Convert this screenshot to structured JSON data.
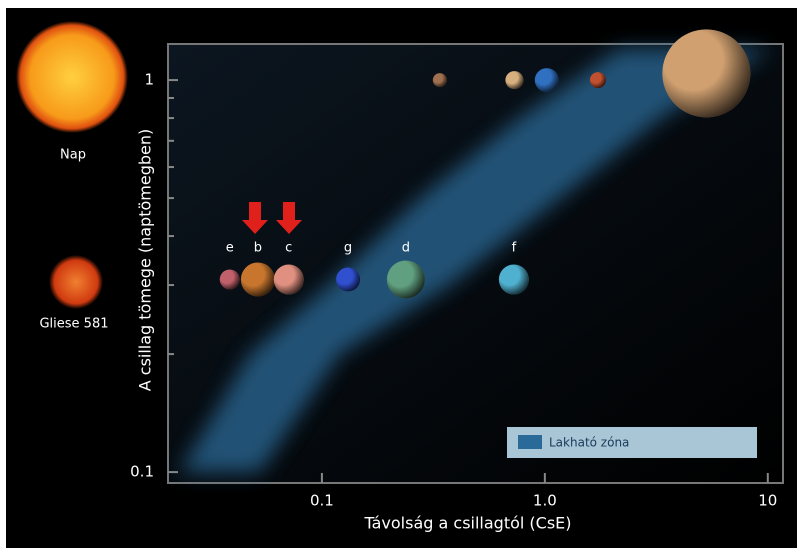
{
  "chart_data": {
    "type": "scatter",
    "ylabel": "A csillag tömege (naptömegben)",
    "xlabel": "Távolság a csillagtól (CsE)",
    "log_x": true,
    "log_y": true,
    "xlim": [
      0.0204,
      11.7
    ],
    "ylim": [
      0.0938,
      1.236
    ],
    "xticks": [
      0.1,
      {
        "value": 1,
        "label": "1.0"
      },
      10
    ],
    "yticks": [
      0.1,
      1
    ],
    "yminorticks": [
      0.2,
      0.3,
      0.4,
      0.5,
      0.6,
      0.7,
      0.8,
      0.9
    ],
    "sun_label": "Nap",
    "star_label": "Gliese 581",
    "series": [
      {
        "labels": [
          "e",
          "b",
          "c",
          "g",
          "d",
          "f"
        ],
        "colors": [
          "#c0606a",
          "#c8762e",
          "#e09080",
          "#3050d0",
          "#60a080",
          "#50b0d0"
        ],
        "x": [
          0.0386,
          0.0516,
          0.071,
          0.131,
          0.238,
          0.726
        ],
        "values": [
          0.31,
          0.31,
          0.31,
          0.31,
          0.31,
          0.31
        ]
      },
      {
        "colors": [
          "#a07050",
          "#d8b080",
          "#3070c0",
          "#c05030",
          "#d0a070"
        ],
        "x": [
          0.338,
          0.73,
          1.02,
          1.73,
          5.3
        ],
        "values": [
          1,
          1,
          1,
          1,
          1.04
        ]
      }
    ],
    "zone": {
      "name": "Lakható zóna",
      "color": "#2a6a98",
      "y": [
        0.1,
        0.2,
        0.3,
        0.5,
        0.8,
        1.2
      ],
      "inner": [
        0.023,
        0.0475,
        0.108,
        0.275,
        0.77,
        2.17
      ],
      "outer": [
        0.0527,
        0.12,
        0.375,
        1.17,
        3.3,
        10.2
      ]
    },
    "legend": "lower right"
  }
}
